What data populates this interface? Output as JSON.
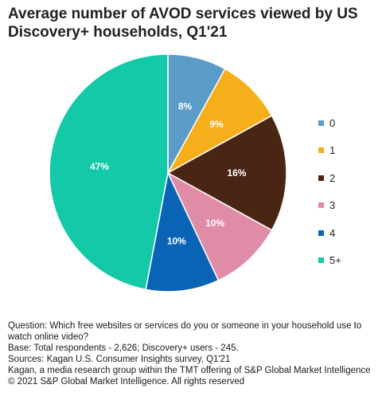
{
  "title": "Average number of AVOD services viewed by US Discovery+ households, Q1'21",
  "chart_data": {
    "type": "pie",
    "title": "Average number of AVOD services viewed by US Discovery+ households, Q1'21",
    "legend_position": "right",
    "slices": [
      {
        "label": "0",
        "value": 8,
        "display": "8%",
        "color": "#5b9bc8"
      },
      {
        "label": "1",
        "value": 9,
        "display": "9%",
        "color": "#f7ae1b"
      },
      {
        "label": "2",
        "value": 16,
        "display": "16%",
        "color": "#4a2514"
      },
      {
        "label": "3",
        "value": 10,
        "display": "10%",
        "color": "#e18ca6"
      },
      {
        "label": "4",
        "value": 10,
        "display": "10%",
        "color": "#0a64b5"
      },
      {
        "label": "5+",
        "value": 47,
        "display": "47%",
        "color": "#13c9a7"
      }
    ]
  },
  "footnotes": {
    "question": "Question:  Which free websites or services do you or someone in your household use to watch online video?",
    "base": "Base: Total respondents - 2,626; Discovery+ users - 245.",
    "sources": "Sources: Kagan U.S. Consumer Insights survey, Q1'21",
    "kagan": "Kagan, a media research group within the TMT offering of S&P Global Market Intelligence",
    "copyright": "© 2021 S&P Global Market Intelligence. All rights reserved"
  }
}
